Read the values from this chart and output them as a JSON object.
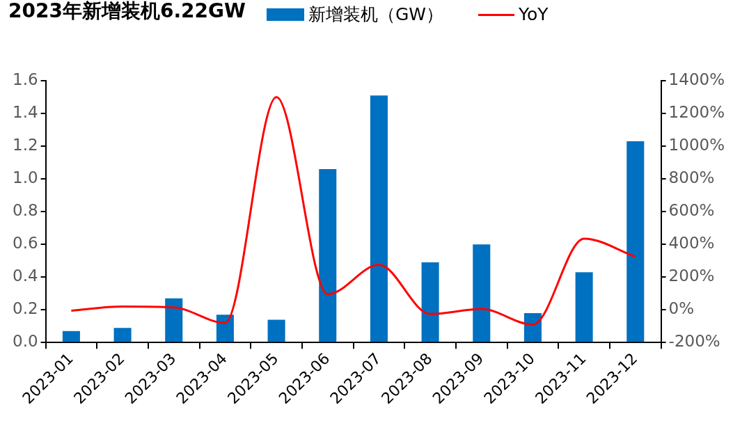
{
  "chart_data": {
    "type": "bar",
    "title": "2023年新增装机6.22GW",
    "categories": [
      "2023-01",
      "2023-02",
      "2023-03",
      "2023-04",
      "2023-05",
      "2023-06",
      "2023-07",
      "2023-08",
      "2023-09",
      "2023-10",
      "2023-11",
      "2023-12"
    ],
    "series": [
      {
        "name": "新增装机（GW）",
        "color": "#0070c0",
        "values": [
          0.07,
          0.09,
          0.27,
          0.17,
          0.14,
          1.06,
          1.51,
          0.49,
          0.6,
          0.18,
          0.43,
          1.23
        ]
      },
      {
        "name": "YoY",
        "type": "line",
        "axis": "y2",
        "color": "#ff0000",
        "values": [
          -5,
          20,
          15,
          -80,
          1300,
          95,
          275,
          -25,
          5,
          -90,
          435,
          325
        ]
      }
    ],
    "ylim": [
      0,
      1.6
    ],
    "yticks": [
      {
        "value": 0,
        "label": "0.0"
      },
      0.2,
      0.4,
      0.6,
      0.8,
      {
        "value": 1,
        "label": "1.0"
      },
      1.2,
      1.4,
      1.6
    ],
    "y2lim": [
      -200,
      1400
    ],
    "y2ticks": [
      {
        "value": -200,
        "label": "-200%"
      },
      {
        "value": 0,
        "label": "0%"
      },
      {
        "value": 200,
        "label": "200%"
      },
      {
        "value": 400,
        "label": "400%"
      },
      {
        "value": 600,
        "label": "600%"
      },
      {
        "value": 800,
        "label": "800%"
      },
      {
        "value": 1000,
        "label": "1000%"
      },
      {
        "value": 1200,
        "label": "1200%"
      },
      {
        "value": 1400,
        "label": "1400%"
      }
    ],
    "legend": "top",
    "grid": false,
    "marker": "none"
  }
}
